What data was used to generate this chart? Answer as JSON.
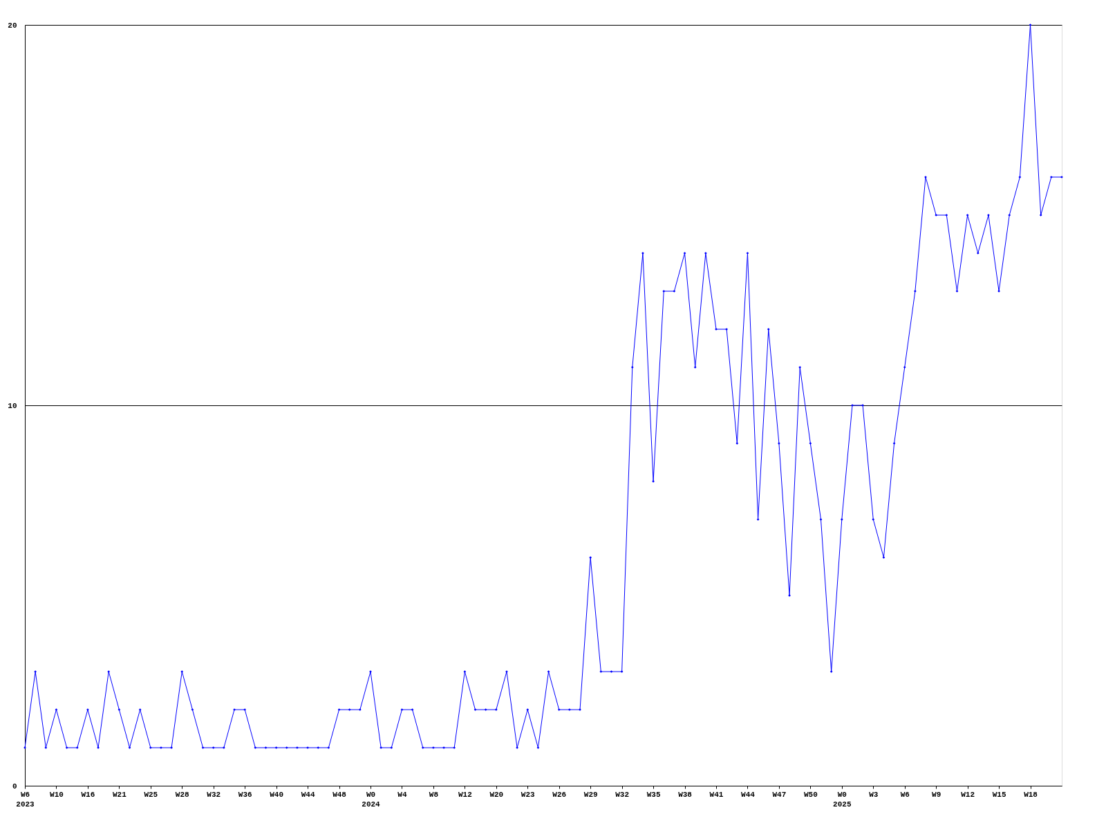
{
  "chart_data": {
    "type": "line",
    "categories": [
      "W6\n2023",
      null,
      null,
      "W10",
      null,
      null,
      "W16",
      null,
      null,
      "W21",
      null,
      null,
      "W25",
      null,
      null,
      "W28",
      null,
      null,
      "W32",
      null,
      null,
      "W36",
      null,
      null,
      "W40",
      null,
      null,
      "W44",
      null,
      null,
      "W48",
      null,
      null,
      "W0\n2024",
      null,
      null,
      "W4",
      null,
      null,
      "W8",
      null,
      null,
      "W12",
      null,
      null,
      "W20",
      null,
      null,
      "W23",
      null,
      null,
      "W26",
      null,
      null,
      "W29",
      null,
      null,
      "W32",
      null,
      null,
      "W35",
      null,
      null,
      "W38",
      null,
      null,
      "W41",
      null,
      null,
      "W44",
      null,
      null,
      "W47",
      null,
      null,
      "W50",
      null,
      null,
      "W0\n2025",
      null,
      null,
      "W3",
      null,
      null,
      "W6",
      null,
      null,
      "W9",
      null,
      null,
      "W12",
      null,
      null,
      "W15",
      null,
      null,
      "W18",
      null,
      null,
      null
    ],
    "series": [
      {
        "color": "#0000ff",
        "values": [
          1,
          3,
          1,
          2,
          1,
          1,
          2,
          1,
          3,
          2,
          1,
          2,
          1,
          1,
          1,
          3,
          2,
          1,
          1,
          1,
          2,
          2,
          1,
          1,
          1,
          1,
          1,
          1,
          1,
          1,
          2,
          2,
          2,
          3,
          1,
          1,
          2,
          2,
          1,
          1,
          1,
          1,
          3,
          2,
          2,
          2,
          3,
          1,
          2,
          1,
          3,
          2,
          2,
          2,
          6,
          3,
          3,
          3,
          11,
          14,
          8,
          13,
          13,
          14,
          11,
          14,
          12,
          12,
          9,
          14,
          7,
          12,
          9,
          5,
          11,
          9,
          7,
          3,
          7,
          10,
          10,
          7,
          6,
          9,
          11,
          13,
          16,
          15,
          15,
          13,
          15,
          14,
          15,
          13,
          15,
          16,
          20,
          15,
          16,
          16
        ]
      }
    ],
    "ylim": [
      0,
      20
    ],
    "yticks": [
      0,
      10,
      20
    ],
    "grid": "y",
    "marker": "diamond",
    "line_style": "solid"
  }
}
